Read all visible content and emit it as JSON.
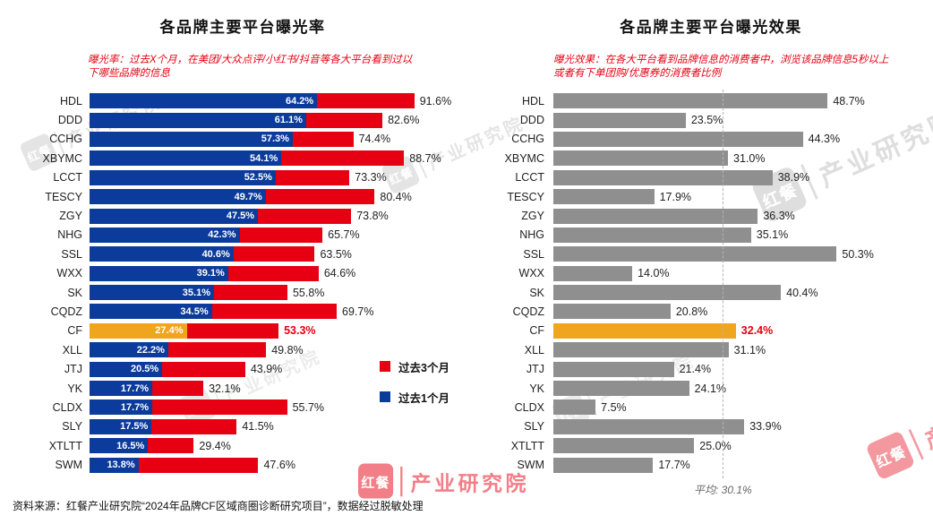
{
  "page": {
    "source_note": "资料来源：红餐产业研究院“2024年品牌CF区域商圈诊断研究项目”，数据经过脱敏处理",
    "watermark": {
      "logo": "红餐",
      "org": "产业研究院"
    }
  },
  "chart_data": [
    {
      "type": "bar",
      "orientation": "horizontal",
      "title": "各品牌主要平台曝光率",
      "subtitle": "曝光率：过去X个月，在美团/大众点评/小红书/抖音等各大平台看到过以下哪些品牌的信息",
      "categories": [
        "HDL",
        "DDD",
        "CCHG",
        "XBYMC",
        "LCCT",
        "TESCY",
        "ZGY",
        "NHG",
        "SSL",
        "WXX",
        "SK",
        "CQDZ",
        "CF",
        "XLL",
        "JTJ",
        "YK",
        "CLDX",
        "SLY",
        "XTLTT",
        "SWM"
      ],
      "series": [
        {
          "name": "过去3个月",
          "color": "#E60012",
          "values": [
            91.6,
            82.6,
            74.4,
            88.7,
            73.3,
            80.4,
            73.8,
            65.7,
            63.5,
            64.6,
            55.8,
            69.7,
            53.3,
            49.8,
            43.9,
            32.1,
            55.7,
            41.5,
            29.4,
            47.6
          ]
        },
        {
          "name": "过去1个月",
          "color": "#0B3B9B",
          "values": [
            64.2,
            61.1,
            57.3,
            54.1,
            52.5,
            49.7,
            47.5,
            42.3,
            40.6,
            39.1,
            35.1,
            34.5,
            27.4,
            22.2,
            20.5,
            17.7,
            17.7,
            17.5,
            16.5,
            13.8
          ]
        }
      ],
      "highlight": {
        "category": "CF",
        "bar_color": "#F0A51E",
        "label_color": "#E60012"
      },
      "xlim": [
        0,
        100
      ],
      "grid": false,
      "legend_position": "right-middle"
    },
    {
      "type": "bar",
      "orientation": "horizontal",
      "title": "各品牌主要平台曝光效果",
      "subtitle": "曝光效果：在各大平台看到品牌信息的消费者中，浏览该品牌信息5秒以上或者有下单团购/优惠券的消费者比例",
      "categories": [
        "HDL",
        "DDD",
        "CCHG",
        "XBYMC",
        "LCCT",
        "TESCY",
        "ZGY",
        "NHG",
        "SSL",
        "WXX",
        "SK",
        "CQDZ",
        "CF",
        "XLL",
        "JTJ",
        "YK",
        "CLDX",
        "SLY",
        "XTLTT",
        "SWM"
      ],
      "values": [
        48.7,
        23.5,
        44.3,
        31.0,
        38.9,
        17.9,
        36.3,
        35.1,
        50.3,
        14.0,
        40.4,
        20.8,
        32.4,
        31.1,
        21.4,
        24.1,
        7.5,
        33.9,
        25.0,
        17.7
      ],
      "bar_color": "#8F8F8F",
      "highlight": {
        "category": "CF",
        "bar_color": "#F0A51E",
        "label_color": "#E60012"
      },
      "average": {
        "label": "平均: 30.1%",
        "value": 30.1
      },
      "xlim": [
        0,
        62
      ],
      "grid": false
    }
  ]
}
